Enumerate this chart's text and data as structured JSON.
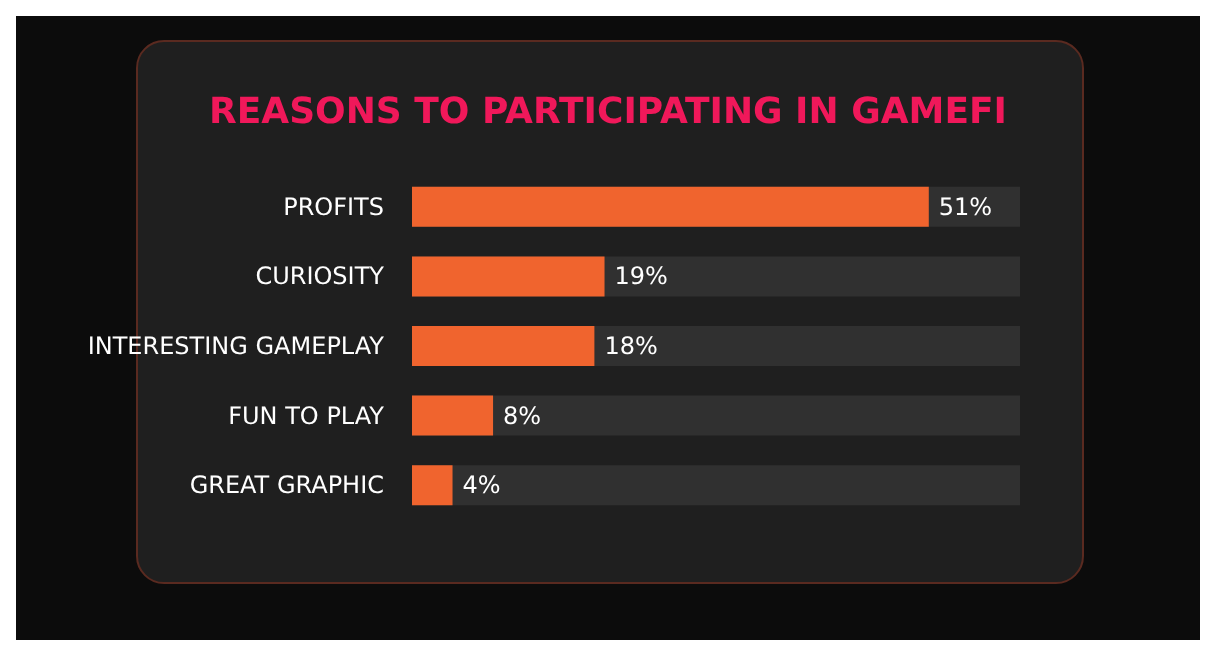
{
  "chart_data": {
    "type": "bar",
    "title": "REASONS TO PARTICIPATING IN GAMEFI",
    "orientation": "horizontal",
    "categories": [
      "PROFITS",
      "CURIOSITY",
      "INTERESTING GAMEPLAY",
      "FUN TO PLAY",
      "GREAT GRAPHIC"
    ],
    "values": [
      51,
      19,
      18,
      8,
      4
    ],
    "color": "#f0642e",
    "data_labels": true,
    "value_labels": [
      "51%",
      "19%",
      "18%",
      "8%",
      "4%"
    ]
  }
}
